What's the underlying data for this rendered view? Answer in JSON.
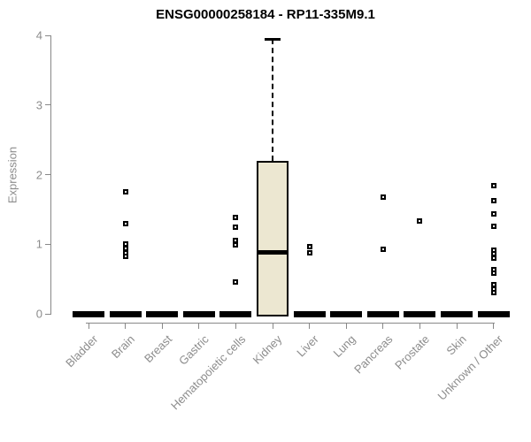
{
  "colors": {
    "box_fill": "#ece7d1",
    "box_stroke": "#000000",
    "axis_line": "#888888",
    "axis_text": "#8c8c8c",
    "title_text": "#000000",
    "background": "#ffffff"
  },
  "chart_data": {
    "type": "boxplot",
    "title": "ENSG00000258184 - RP11-335M9.1",
    "ylabel": "Expression",
    "xlabel": "",
    "ylim": [
      0,
      4
    ],
    "yticks": [
      0,
      1,
      2,
      3,
      4
    ],
    "grid": false,
    "legend": "none",
    "categories": [
      "Bladder",
      "Brain",
      "Breast",
      "Gastric",
      "Hematopoietic cells",
      "Kidney",
      "Liver",
      "Lung",
      "Pancreas",
      "Prostate",
      "Skin",
      "Unknown / Other"
    ],
    "boxes": [
      {
        "category": "Bladder",
        "q1": 0,
        "median": 0,
        "q3": 0,
        "whisker_low": 0,
        "whisker_high": 0,
        "outliers": []
      },
      {
        "category": "Brain",
        "q1": 0,
        "median": 0,
        "q3": 0,
        "whisker_low": 0,
        "whisker_high": 0,
        "outliers": [
          1.75,
          1.3,
          1.0,
          0.94,
          0.88,
          0.82
        ]
      },
      {
        "category": "Breast",
        "q1": 0,
        "median": 0,
        "q3": 0,
        "whisker_low": 0,
        "whisker_high": 0,
        "outliers": []
      },
      {
        "category": "Gastric",
        "q1": 0,
        "median": 0,
        "q3": 0,
        "whisker_low": 0,
        "whisker_high": 0,
        "outliers": []
      },
      {
        "category": "Hematopoietic cells",
        "q1": 0,
        "median": 0,
        "q3": 0,
        "whisker_low": 0,
        "whisker_high": 0,
        "outliers": [
          1.38,
          1.24,
          1.05,
          0.99,
          0.46
        ]
      },
      {
        "category": "Kidney",
        "q1": 0,
        "median": 0.88,
        "q3": 2.2,
        "whisker_low": 0,
        "whisker_high": 3.95,
        "outliers": []
      },
      {
        "category": "Liver",
        "q1": 0,
        "median": 0,
        "q3": 0,
        "whisker_low": 0,
        "whisker_high": 0,
        "outliers": [
          0.97,
          0.87
        ]
      },
      {
        "category": "Lung",
        "q1": 0,
        "median": 0,
        "q3": 0,
        "whisker_low": 0,
        "whisker_high": 0,
        "outliers": []
      },
      {
        "category": "Pancreas",
        "q1": 0,
        "median": 0,
        "q3": 0,
        "whisker_low": 0,
        "whisker_high": 0,
        "outliers": [
          1.68,
          0.93
        ]
      },
      {
        "category": "Prostate",
        "q1": 0,
        "median": 0,
        "q3": 0,
        "whisker_low": 0,
        "whisker_high": 0,
        "outliers": [
          1.33
        ]
      },
      {
        "category": "Skin",
        "q1": 0,
        "median": 0,
        "q3": 0,
        "whisker_low": 0,
        "whisker_high": 0,
        "outliers": []
      },
      {
        "category": "Unknown / Other",
        "q1": 0,
        "median": 0,
        "q3": 0,
        "whisker_low": 0,
        "whisker_high": 0,
        "outliers": [
          1.84,
          1.63,
          1.43,
          1.26,
          0.91,
          0.86,
          0.8,
          0.64,
          0.58,
          0.42,
          0.36,
          0.3
        ]
      }
    ]
  }
}
